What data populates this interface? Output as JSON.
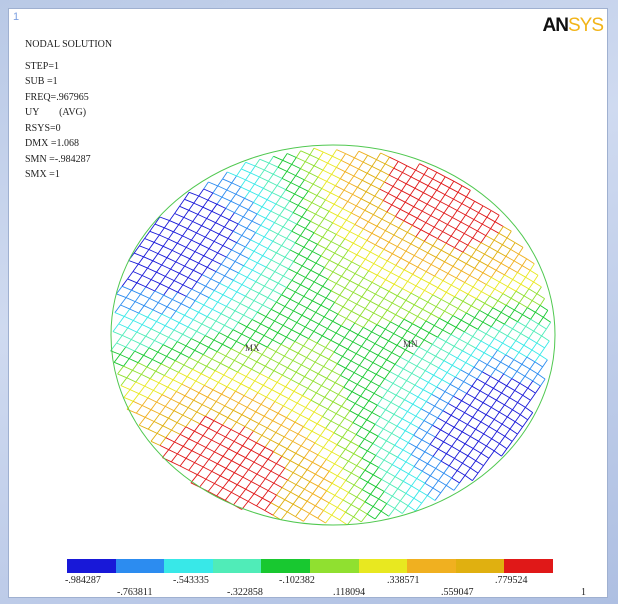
{
  "window_number": "1",
  "logo": {
    "part1": "AN",
    "part2": "SYS"
  },
  "info_lines": [
    "NODAL SOLUTION",
    "STEP=1",
    "SUB =1",
    "FREQ=.967965",
    "UY        (AVG)",
    "RSYS=0",
    "DMX =1.068",
    "SMN =-.984287",
    "SMX =1"
  ],
  "markers": {
    "max": "MX",
    "min": "MN"
  },
  "legend": {
    "colors": [
      "#1818d8",
      "#2c8cf0",
      "#38e8e8",
      "#50ecb8",
      "#18c830",
      "#90e030",
      "#e8e820",
      "#f0b020",
      "#e0b010",
      "#e01818"
    ],
    "upper_labels": [
      "-.984287",
      "-.543335",
      "-.102382",
      ".338571",
      ".779524"
    ],
    "lower_labels": [
      "-.763811",
      "-.322858",
      ".118094",
      ".559047",
      "1"
    ]
  }
}
